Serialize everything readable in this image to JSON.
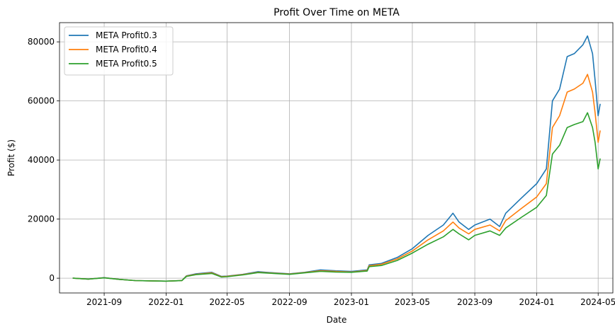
{
  "chart_data": {
    "type": "line",
    "title": "Profit Over Time on META",
    "xlabel": "Date",
    "ylabel": "Profit ($)",
    "x_ticks": [
      "2021-09",
      "2022-01",
      "2022-05",
      "2022-09",
      "2023-01",
      "2023-05",
      "2023-09",
      "2024-01",
      "2024-05"
    ],
    "y_ticks": [
      0,
      20000,
      40000,
      60000,
      80000
    ],
    "xlim": [
      "2021-06-05",
      "2024-05-30"
    ],
    "ylim": [
      -5000,
      86500
    ],
    "grid": true,
    "legend_position": "top-left",
    "series": [
      {
        "name": "META Profit0.3",
        "color": "#1f77b4",
        "points": [
          [
            "2021-07-01",
            0
          ],
          [
            "2021-08-01",
            -300
          ],
          [
            "2021-09-01",
            200
          ],
          [
            "2021-10-01",
            -400
          ],
          [
            "2021-11-01",
            -800
          ],
          [
            "2021-12-01",
            -900
          ],
          [
            "2022-01-01",
            -1000
          ],
          [
            "2022-02-01",
            -800
          ],
          [
            "2022-02-10",
            800
          ],
          [
            "2022-03-01",
            1500
          ],
          [
            "2022-04-01",
            2000
          ],
          [
            "2022-04-20",
            600
          ],
          [
            "2022-05-01",
            700
          ],
          [
            "2022-06-01",
            1300
          ],
          [
            "2022-07-01",
            2200
          ],
          [
            "2022-08-01",
            1800
          ],
          [
            "2022-09-01",
            1500
          ],
          [
            "2022-10-01",
            2000
          ],
          [
            "2022-11-01",
            2800
          ],
          [
            "2022-12-01",
            2500
          ],
          [
            "2023-01-01",
            2300
          ],
          [
            "2023-02-01",
            2800
          ],
          [
            "2023-02-05",
            4500
          ],
          [
            "2023-03-01",
            5000
          ],
          [
            "2023-04-01",
            7000
          ],
          [
            "2023-05-01",
            10000
          ],
          [
            "2023-06-01",
            14500
          ],
          [
            "2023-07-01",
            18000
          ],
          [
            "2023-07-20",
            22000
          ],
          [
            "2023-08-01",
            19000
          ],
          [
            "2023-08-20",
            16500
          ],
          [
            "2023-09-01",
            18000
          ],
          [
            "2023-10-01",
            20000
          ],
          [
            "2023-10-20",
            17500
          ],
          [
            "2023-11-01",
            22000
          ],
          [
            "2023-12-01",
            27000
          ],
          [
            "2024-01-01",
            32000
          ],
          [
            "2024-01-20",
            37000
          ],
          [
            "2024-02-01",
            60000
          ],
          [
            "2024-02-15",
            64000
          ],
          [
            "2024-03-01",
            75000
          ],
          [
            "2024-03-15",
            76000
          ],
          [
            "2024-04-01",
            79000
          ],
          [
            "2024-04-10",
            82000
          ],
          [
            "2024-04-20",
            76000
          ],
          [
            "2024-04-25",
            67000
          ],
          [
            "2024-05-01",
            55000
          ],
          [
            "2024-05-05",
            59000
          ]
        ]
      },
      {
        "name": "META Profit0.4",
        "color": "#ff7f0e",
        "points": [
          [
            "2021-07-01",
            0
          ],
          [
            "2021-08-01",
            -300
          ],
          [
            "2021-09-01",
            150
          ],
          [
            "2021-10-01",
            -400
          ],
          [
            "2021-11-01",
            -800
          ],
          [
            "2021-12-01",
            -900
          ],
          [
            "2022-01-01",
            -1000
          ],
          [
            "2022-02-01",
            -800
          ],
          [
            "2022-02-10",
            700
          ],
          [
            "2022-03-01",
            1300
          ],
          [
            "2022-04-01",
            1800
          ],
          [
            "2022-04-20",
            500
          ],
          [
            "2022-05-01",
            600
          ],
          [
            "2022-06-01",
            1200
          ],
          [
            "2022-07-01",
            2000
          ],
          [
            "2022-08-01",
            1700
          ],
          [
            "2022-09-01",
            1400
          ],
          [
            "2022-10-01",
            1900
          ],
          [
            "2022-11-01",
            2500
          ],
          [
            "2022-12-01",
            2300
          ],
          [
            "2023-01-01",
            2100
          ],
          [
            "2023-02-01",
            2600
          ],
          [
            "2023-02-05",
            4200
          ],
          [
            "2023-03-01",
            4700
          ],
          [
            "2023-04-01",
            6500
          ],
          [
            "2023-05-01",
            9200
          ],
          [
            "2023-06-01",
            13000
          ],
          [
            "2023-07-01",
            16000
          ],
          [
            "2023-07-20",
            19000
          ],
          [
            "2023-08-01",
            17000
          ],
          [
            "2023-08-20",
            15000
          ],
          [
            "2023-09-01",
            16500
          ],
          [
            "2023-10-01",
            18000
          ],
          [
            "2023-10-20",
            16000
          ],
          [
            "2023-11-01",
            19500
          ],
          [
            "2023-12-01",
            23500
          ],
          [
            "2024-01-01",
            27500
          ],
          [
            "2024-01-20",
            32000
          ],
          [
            "2024-02-01",
            51000
          ],
          [
            "2024-02-15",
            55000
          ],
          [
            "2024-03-01",
            63000
          ],
          [
            "2024-03-15",
            64000
          ],
          [
            "2024-04-01",
            66000
          ],
          [
            "2024-04-10",
            69000
          ],
          [
            "2024-04-20",
            63000
          ],
          [
            "2024-04-25",
            56000
          ],
          [
            "2024-05-01",
            46000
          ],
          [
            "2024-05-05",
            50000
          ]
        ]
      },
      {
        "name": "META Profit0.5",
        "color": "#2ca02c",
        "points": [
          [
            "2021-07-01",
            0
          ],
          [
            "2021-08-01",
            -300
          ],
          [
            "2021-09-01",
            100
          ],
          [
            "2021-10-01",
            -400
          ],
          [
            "2021-11-01",
            -800
          ],
          [
            "2021-12-01",
            -900
          ],
          [
            "2022-01-01",
            -1000
          ],
          [
            "2022-02-01",
            -800
          ],
          [
            "2022-02-10",
            600
          ],
          [
            "2022-03-01",
            1200
          ],
          [
            "2022-04-01",
            1600
          ],
          [
            "2022-04-20",
            400
          ],
          [
            "2022-05-01",
            500
          ],
          [
            "2022-06-01",
            1100
          ],
          [
            "2022-07-01",
            1900
          ],
          [
            "2022-08-01",
            1600
          ],
          [
            "2022-09-01",
            1300
          ],
          [
            "2022-10-01",
            1800
          ],
          [
            "2022-11-01",
            2300
          ],
          [
            "2022-12-01",
            2100
          ],
          [
            "2023-01-01",
            2000
          ],
          [
            "2023-02-01",
            2400
          ],
          [
            "2023-02-05",
            3900
          ],
          [
            "2023-03-01",
            4300
          ],
          [
            "2023-04-01",
            6000
          ],
          [
            "2023-05-01",
            8500
          ],
          [
            "2023-06-01",
            11500
          ],
          [
            "2023-07-01",
            14000
          ],
          [
            "2023-07-20",
            16500
          ],
          [
            "2023-08-01",
            15000
          ],
          [
            "2023-08-20",
            13000
          ],
          [
            "2023-09-01",
            14500
          ],
          [
            "2023-10-01",
            16000
          ],
          [
            "2023-10-20",
            14500
          ],
          [
            "2023-11-01",
            17000
          ],
          [
            "2023-12-01",
            20500
          ],
          [
            "2024-01-01",
            24000
          ],
          [
            "2024-01-20",
            28000
          ],
          [
            "2024-02-01",
            42000
          ],
          [
            "2024-02-15",
            45000
          ],
          [
            "2024-03-01",
            51000
          ],
          [
            "2024-03-15",
            52000
          ],
          [
            "2024-04-01",
            53000
          ],
          [
            "2024-04-10",
            56000
          ],
          [
            "2024-04-20",
            51000
          ],
          [
            "2024-04-25",
            46000
          ],
          [
            "2024-05-01",
            37000
          ],
          [
            "2024-05-05",
            40500
          ]
        ]
      }
    ]
  }
}
